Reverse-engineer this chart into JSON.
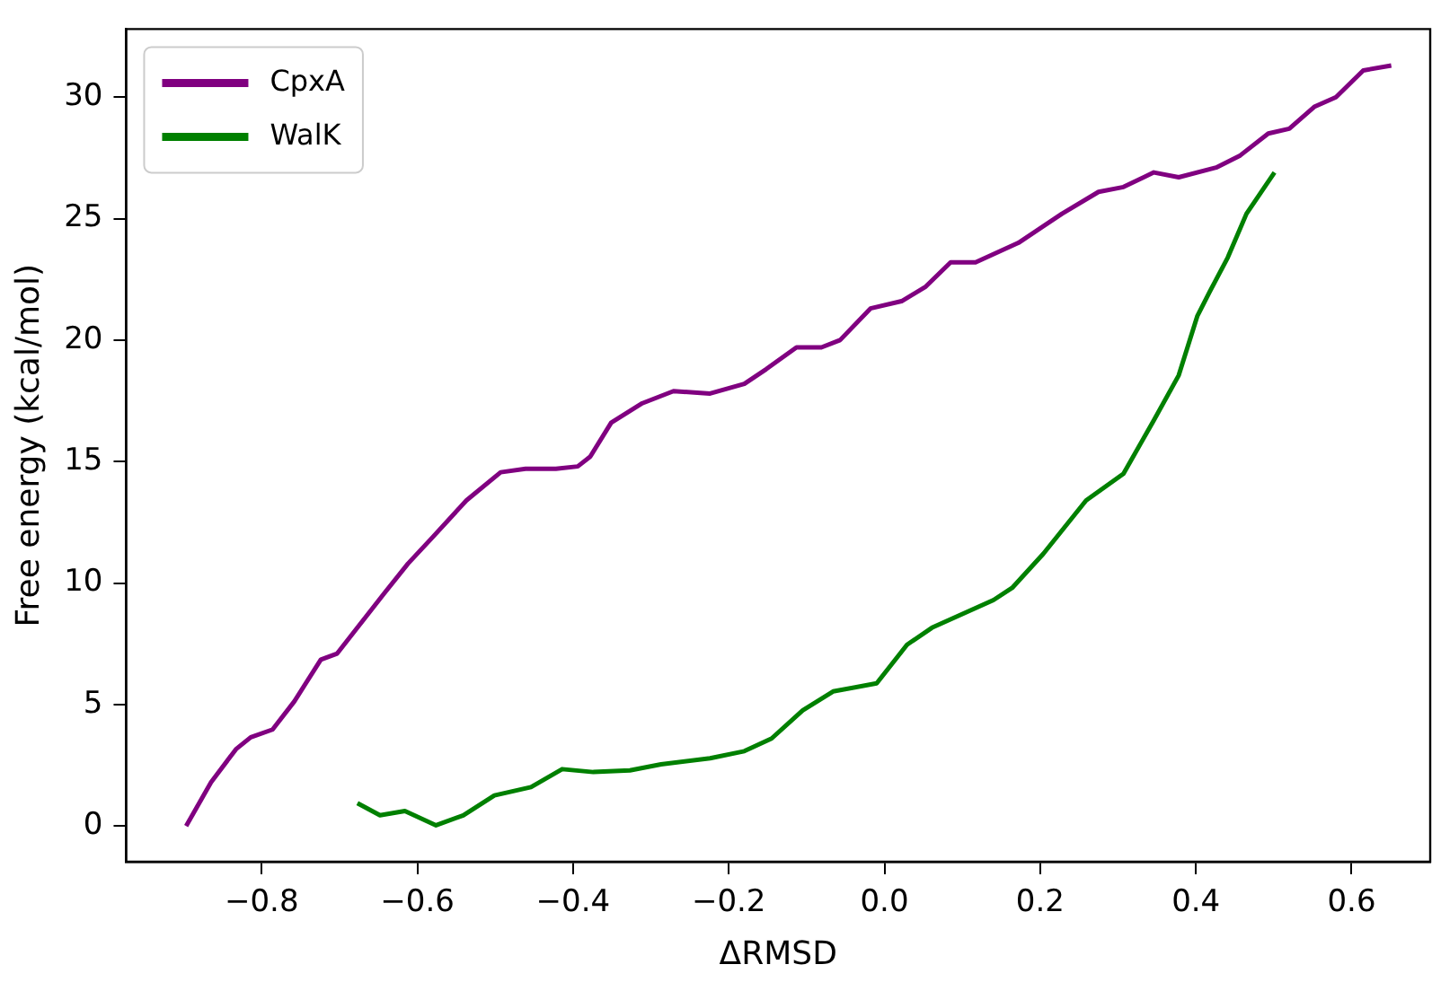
{
  "chart_data": {
    "type": "line",
    "xlabel": "ΔRMSD",
    "ylabel": "Free energy (kcal/mol)",
    "xlim": [
      -0.974,
      0.701
    ],
    "xticks": [
      {
        "value": -0.8,
        "label": "−0.8"
      },
      {
        "value": -0.6,
        "label": "−0.6"
      },
      {
        "value": -0.4,
        "label": "−0.4"
      },
      {
        "value": -0.2,
        "label": "−0.2"
      },
      {
        "value": 0,
        "label": "0.0"
      },
      {
        "value": 0.2,
        "label": "0.2"
      },
      {
        "value": 0.4,
        "label": "0.4"
      },
      {
        "value": 0.6,
        "label": "0.6"
      }
    ],
    "ylim": [
      -1.47,
      32.8
    ],
    "yticks": [
      0,
      5,
      10,
      15,
      20,
      25,
      30
    ],
    "grid": false,
    "legend": "top left",
    "marker": "none",
    "line_style": "solid",
    "series": [
      {
        "name": "CpxA",
        "color": "#800080",
        "x": [
          -0.897,
          -0.865,
          -0.833,
          -0.814,
          -0.786,
          -0.758,
          -0.724,
          -0.703,
          -0.643,
          -0.612,
          -0.58,
          -0.537,
          -0.493,
          -0.461,
          -0.422,
          -0.394,
          -0.378,
          -0.351,
          -0.311,
          -0.271,
          -0.224,
          -0.18,
          -0.152,
          -0.113,
          -0.081,
          -0.057,
          -0.018,
          0.022,
          0.053,
          0.085,
          0.117,
          0.172,
          0.228,
          0.275,
          0.307,
          0.346,
          0.378,
          0.426,
          0.457,
          0.493,
          0.52,
          0.552,
          0.58,
          0.615,
          0.651
        ],
        "values": [
          0,
          1.8,
          3.16,
          3.65,
          3.97,
          5.13,
          6.85,
          7.1,
          9.56,
          10.8,
          11.9,
          13.4,
          14.56,
          14.7,
          14.7,
          14.8,
          15.2,
          16.6,
          17.4,
          17.9,
          17.8,
          18.2,
          18.8,
          19.7,
          19.7,
          20.0,
          21.3,
          21.6,
          22.2,
          23.2,
          23.2,
          24.0,
          25.2,
          26.1,
          26.3,
          26.9,
          26.7,
          27.1,
          27.6,
          28.5,
          28.7,
          29.6,
          30.0,
          31.1,
          31.3
        ]
      },
      {
        "name": "WalK",
        "color": "#008000",
        "x": [
          -0.677,
          -0.648,
          -0.616,
          -0.576,
          -0.541,
          -0.501,
          -0.454,
          -0.414,
          -0.374,
          -0.327,
          -0.287,
          -0.224,
          -0.18,
          -0.145,
          -0.105,
          -0.066,
          -0.01,
          0.029,
          0.061,
          0.14,
          0.164,
          0.204,
          0.259,
          0.307,
          0.346,
          0.378,
          0.402,
          0.418,
          0.441,
          0.465,
          0.501
        ],
        "values": [
          0.94,
          0.44,
          0.62,
          0.03,
          0.44,
          1.26,
          1.6,
          2.34,
          2.22,
          2.29,
          2.54,
          2.79,
          3.08,
          3.6,
          4.76,
          5.54,
          5.87,
          7.46,
          8.16,
          9.3,
          9.8,
          11.2,
          13.4,
          14.5,
          16.7,
          18.55,
          21.0,
          22.0,
          23.4,
          25.2,
          26.9
        ]
      }
    ]
  }
}
